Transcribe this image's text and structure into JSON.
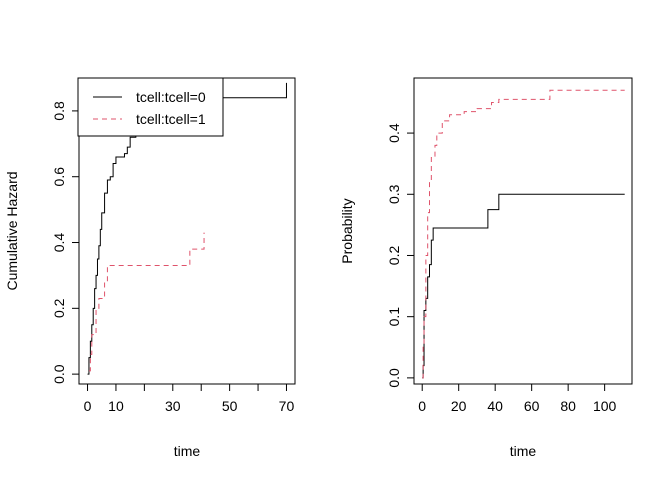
{
  "chart_data": [
    {
      "type": "line",
      "xlabel": "time",
      "ylabel": "Cumulative Hazard",
      "xlim": [
        -3,
        73
      ],
      "ylim": [
        -0.03,
        0.9
      ],
      "xticks": [
        0,
        10,
        20,
        30,
        40,
        50,
        60,
        70
      ],
      "xtick_labels": [
        "0",
        "10",
        "",
        "30",
        "",
        "50",
        "",
        "70"
      ],
      "yticks": [
        0,
        0.2,
        0.4,
        0.6,
        0.8
      ],
      "ytick_labels": [
        "0.0",
        "0.2",
        "0.4",
        "0.6",
        "0.8"
      ],
      "legend": {
        "placement": "top-left",
        "entries": [
          "tcell:tcell=0",
          "tcell:tcell=1"
        ]
      },
      "series": [
        {
          "name": "tcell:tcell=0",
          "color": "#000000",
          "dash": "solid",
          "x": [
            0,
            0.5,
            1,
            1.5,
            2,
            2.5,
            3,
            3.5,
            4,
            4.5,
            5,
            6,
            7,
            8,
            9,
            10,
            13,
            14,
            15,
            17,
            18,
            20,
            70
          ],
          "y": [
            0,
            0.05,
            0.1,
            0.15,
            0.2,
            0.26,
            0.3,
            0.35,
            0.39,
            0.44,
            0.49,
            0.55,
            0.59,
            0.6,
            0.64,
            0.66,
            0.67,
            0.69,
            0.72,
            0.74,
            0.76,
            0.84,
            0.885
          ]
        },
        {
          "name": "tcell:tcell=1",
          "color": "#DF536B",
          "dash": "dashed",
          "x": [
            0.5,
            1,
            1.5,
            3,
            4,
            6,
            7,
            36,
            41
          ],
          "y": [
            0.01,
            0.06,
            0.12,
            0.2,
            0.23,
            0.28,
            0.33,
            0.38,
            0.43
          ]
        }
      ]
    },
    {
      "type": "line",
      "xlabel": "time",
      "ylabel": "Probability",
      "xlim": [
        -4.5,
        115
      ],
      "ylim": [
        -0.01,
        0.49
      ],
      "xticks": [
        0,
        20,
        40,
        60,
        80,
        100
      ],
      "xtick_labels": [
        "0",
        "20",
        "40",
        "60",
        "80",
        "100"
      ],
      "yticks": [
        0,
        0.1,
        0.2,
        0.3,
        0.4
      ],
      "ytick_labels": [
        "0.0",
        "0.1",
        "0.2",
        "0.3",
        "0.4"
      ],
      "series": [
        {
          "color": "#000000",
          "dash": "solid",
          "x": [
            0,
            0.5,
            1,
            2,
            3,
            4,
            5,
            6,
            36,
            42,
            111
          ],
          "y": [
            0,
            0.02,
            0.11,
            0.13,
            0.165,
            0.185,
            0.225,
            0.245,
            0.275,
            0.3,
            0.3
          ]
        },
        {
          "color": "#DF536B",
          "dash": "dashed",
          "x": [
            0,
            0.5,
            1,
            2,
            3,
            4,
            5,
            7,
            8,
            11,
            15,
            23,
            30,
            38,
            42,
            70,
            111
          ],
          "y": [
            0,
            0.05,
            0.1,
            0.2,
            0.27,
            0.32,
            0.36,
            0.38,
            0.4,
            0.42,
            0.43,
            0.435,
            0.44,
            0.45,
            0.455,
            0.47,
            0.47
          ]
        }
      ]
    }
  ]
}
